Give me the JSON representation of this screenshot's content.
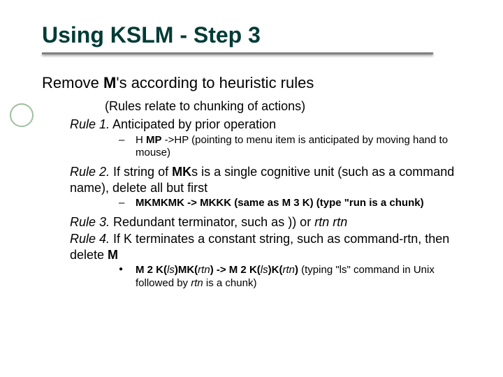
{
  "colors": {
    "title": "#003b36",
    "underline": "#808080",
    "text": "#000000",
    "circle": "#9fbf9f",
    "background": "#ffffff"
  },
  "typography": {
    "title_fontsize": 32,
    "subtitle_fontsize": 22,
    "rule_fontsize": 18,
    "sub_fontsize": 15,
    "font_family": "Arial"
  },
  "title": "Using KSLM  - Step 3",
  "subtitle_pre": "Remove ",
  "subtitle_bold": "M",
  "subtitle_post": "'s according to heuristic rules",
  "paren": "(Rules relate to chunking of actions)",
  "rule1_label": "Rule 1.",
  "rule1_text": " Anticipated by prior operation",
  "rule1_sub_pre": " H ",
  "rule1_sub_bold": "MP",
  "rule1_sub_post": " ->HP (pointing to menu item is anticipated by moving hand to mouse)",
  "rule2_label": "Rule 2.",
  "rule2_pre": " If string of ",
  "rule2_bold1": "MK",
  "rule2_post": "s is a single cognitive unit (such as a command name), delete all but first",
  "rule2_sub_bold": "MKMKMK -> MKKK (same as M 3 K) (type \"run is a chunk)",
  "rule3_label": "Rule 3.",
  "rule3_pre": " Redundant terminator, such as )) or ",
  "rule3_i1": "rtn rtn",
  "rule4_label": "Rule 4.",
  "rule4_pre": " If K terminates a constant string, such as command-rtn, then delete ",
  "rule4_bold": "M",
  "rule4_sub_b1": "M 2 K(",
  "rule4_sub_i1": "ls",
  "rule4_sub_b2": ")MK(",
  "rule4_sub_i2": "rtn",
  "rule4_sub_b3": ") -> M 2 K(",
  "rule4_sub_i3": "ls",
  "rule4_sub_b4": ")K(",
  "rule4_sub_i4": "rtn",
  "rule4_sub_b5": ")",
  "rule4_sub_tail_pre": " (typing \"ls\" command in Unix followed by ",
  "rule4_sub_tail_i": "rtn",
  "rule4_sub_tail_post": " is a chunk)"
}
